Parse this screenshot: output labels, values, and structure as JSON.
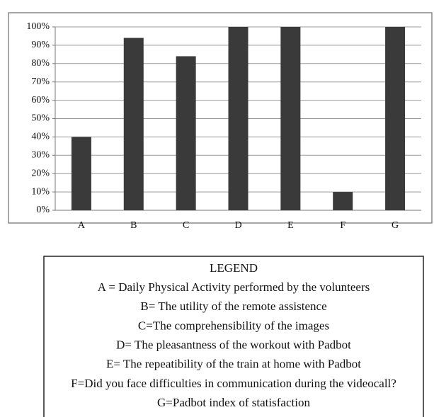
{
  "chart_data": {
    "type": "bar",
    "categories": [
      "A",
      "B",
      "C",
      "D",
      "E",
      "F",
      "G"
    ],
    "values": [
      40,
      94,
      84,
      100,
      100,
      10,
      100
    ],
    "color": "#3a3a3a",
    "ylim": [
      0,
      100
    ],
    "yticks": [
      {
        "value": 0,
        "label": "0%"
      },
      {
        "value": 10,
        "label": "10%"
      },
      {
        "value": 20,
        "label": "20%"
      },
      {
        "value": 30,
        "label": "30%"
      },
      {
        "value": 40,
        "label": "40%"
      },
      {
        "value": 50,
        "label": "50%"
      },
      {
        "value": 60,
        "label": "60%"
      },
      {
        "value": 70,
        "label": "70%"
      },
      {
        "value": 80,
        "label": "80%"
      },
      {
        "value": 90,
        "label": "90%"
      },
      {
        "value": 100,
        "label": "100%"
      }
    ],
    "grid": true,
    "legend_box": {
      "title": "LEGEND",
      "items": [
        "A = Daily Physical Activity performed by the volunteers",
        "B= The utility of the remote assistence",
        "C=The comprehensibility of the images",
        "D= The pleasantness of the workout with Padbot",
        "E= The repeatibility of the train at home with Padbot",
        "F=Did you face difficulties in communication during the videocall?",
        "G=Padbot index of statisfaction"
      ]
    }
  }
}
